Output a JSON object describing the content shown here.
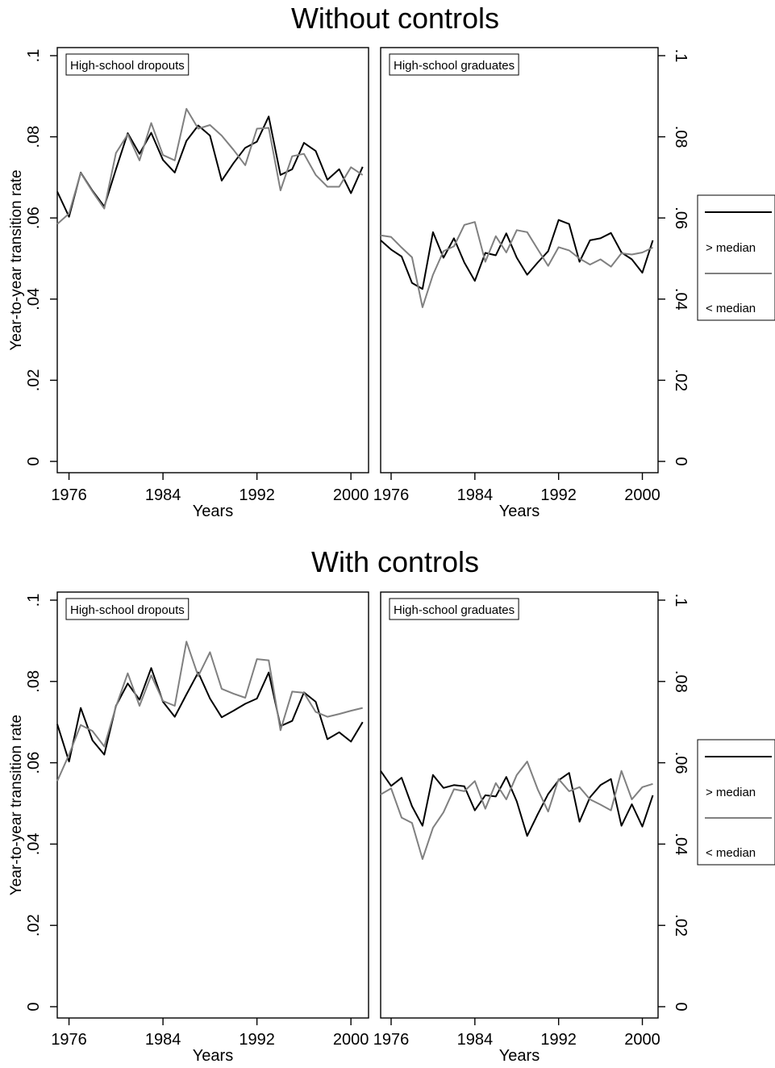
{
  "figure": {
    "colors": {
      "above_median": "#000000",
      "below_median": "#808080",
      "frame": "#000000",
      "background": "#ffffff"
    }
  },
  "chart_data": [
    {
      "type": "line",
      "title": "Without controls",
      "panel_title": "High-school dropouts",
      "xlabel": "Years",
      "ylabel": "Year-to-year transition rate",
      "xlim": [
        1975,
        2001.5
      ],
      "ylim": [
        0,
        0.1
      ],
      "xticks": [
        1976,
        1984,
        1992,
        2000
      ],
      "xtick_labels": [
        "1976",
        "1984",
        "1992",
        "2000"
      ],
      "yticks": [
        0,
        0.02,
        0.04,
        0.06,
        0.08,
        0.1
      ],
      "ytick_labels": [
        "0",
        ".02",
        ".04",
        ".06",
        ".08",
        ".1"
      ],
      "grid": false,
      "x": [
        1975,
        1976,
        1977,
        1978,
        1979,
        1980,
        1981,
        1982,
        1983,
        1984,
        1985,
        1986,
        1987,
        1988,
        1989,
        1990,
        1991,
        1992,
        1993,
        1994,
        1995,
        1996,
        1997,
        1998,
        1999,
        2000,
        2001
      ],
      "series": [
        {
          "name": "> median",
          "color": "#000000",
          "values": [
            0.0665,
            0.0603,
            0.0712,
            0.0667,
            0.0628,
            0.072,
            0.0809,
            0.0758,
            0.081,
            0.0743,
            0.0712,
            0.079,
            0.0828,
            0.0803,
            0.0692,
            0.0735,
            0.0773,
            0.0788,
            0.085,
            0.0706,
            0.072,
            0.0785,
            0.0765,
            0.0694,
            0.072,
            0.0661,
            0.0726
          ]
        },
        {
          "name": "< median",
          "color": "#808080",
          "values": [
            0.0585,
            0.0611,
            0.0711,
            0.0665,
            0.0623,
            0.076,
            0.0806,
            0.0742,
            0.0834,
            0.0755,
            0.0742,
            0.0869,
            0.082,
            0.0829,
            0.0803,
            0.0768,
            0.073,
            0.082,
            0.0822,
            0.0668,
            0.0752,
            0.0758,
            0.0706,
            0.0677,
            0.0677,
            0.0725,
            0.0706
          ]
        }
      ]
    },
    {
      "type": "line",
      "title": "Without controls",
      "panel_title": "High-school graduates",
      "xlabel": "Years",
      "ylabel": "",
      "xlim": [
        1975,
        2001.5
      ],
      "ylim": [
        0,
        0.1
      ],
      "xticks": [
        1976,
        1984,
        1992,
        2000
      ],
      "xtick_labels": [
        "1976",
        "1984",
        "1992",
        "2000"
      ],
      "yticks": [
        0,
        0.02,
        0.04,
        0.06,
        0.08,
        0.1
      ],
      "ytick_labels": [
        "0",
        ".02",
        ".04",
        ".06",
        ".08",
        ".1"
      ],
      "grid": false,
      "x": [
        1975,
        1976,
        1977,
        1978,
        1979,
        1980,
        1981,
        1982,
        1983,
        1984,
        1985,
        1986,
        1987,
        1988,
        1989,
        1990,
        1991,
        1992,
        1993,
        1994,
        1995,
        1996,
        1997,
        1998,
        1999,
        2000,
        2001
      ],
      "series": [
        {
          "name": "> median",
          "color": "#000000",
          "values": [
            0.0545,
            0.0522,
            0.0505,
            0.044,
            0.0425,
            0.0565,
            0.0502,
            0.055,
            0.049,
            0.0445,
            0.0514,
            0.0508,
            0.0562,
            0.0502,
            0.046,
            0.049,
            0.0518,
            0.0595,
            0.0585,
            0.0492,
            0.0545,
            0.055,
            0.0563,
            0.0515,
            0.0498,
            0.0465,
            0.0545
          ]
        },
        {
          "name": "< median",
          "color": "#808080",
          "values": [
            0.0557,
            0.0553,
            0.0527,
            0.0503,
            0.038,
            0.046,
            0.0518,
            0.053,
            0.0583,
            0.059,
            0.0492,
            0.0555,
            0.0515,
            0.057,
            0.0565,
            0.0523,
            0.0482,
            0.0528,
            0.052,
            0.05,
            0.0485,
            0.0498,
            0.048,
            0.0513,
            0.051,
            0.0515,
            0.0527
          ]
        }
      ]
    },
    {
      "type": "line",
      "title": "With controls",
      "panel_title": "High-school dropouts",
      "xlabel": "Years",
      "ylabel": "Year-to-year transition rate",
      "xlim": [
        1975,
        2001.5
      ],
      "ylim": [
        0,
        0.1
      ],
      "xticks": [
        1976,
        1984,
        1992,
        2000
      ],
      "xtick_labels": [
        "1976",
        "1984",
        "1992",
        "2000"
      ],
      "yticks": [
        0,
        0.02,
        0.04,
        0.06,
        0.08,
        0.1
      ],
      "ytick_labels": [
        "0",
        ".02",
        ".04",
        ".06",
        ".08",
        ".1"
      ],
      "grid": false,
      "x": [
        1975,
        1976,
        1977,
        1978,
        1979,
        1980,
        1981,
        1982,
        1983,
        1984,
        1985,
        1986,
        1987,
        1988,
        1989,
        1990,
        1991,
        1992,
        1993,
        1994,
        1995,
        1996,
        1997,
        1998,
        1999,
        2000,
        2001
      ],
      "series": [
        {
          "name": "> median",
          "color": "#000000",
          "values": [
            0.0695,
            0.0603,
            0.0735,
            0.0655,
            0.062,
            0.074,
            0.0795,
            0.0755,
            0.0833,
            0.075,
            0.0713,
            0.0768,
            0.0822,
            0.0758,
            0.0712,
            0.0728,
            0.0745,
            0.0758,
            0.0822,
            0.069,
            0.0703,
            0.0773,
            0.075,
            0.0658,
            0.0675,
            0.0652,
            0.07
          ]
        },
        {
          "name": "< median",
          "color": "#808080",
          "values": [
            0.0555,
            0.062,
            0.0693,
            0.0678,
            0.064,
            0.0738,
            0.082,
            0.074,
            0.0815,
            0.0752,
            0.074,
            0.0898,
            0.0813,
            0.0872,
            0.0782,
            0.077,
            0.076,
            0.0855,
            0.0852,
            0.068,
            0.0775,
            0.0772,
            0.0725,
            0.0713,
            0.072,
            0.0728,
            0.0735
          ]
        }
      ]
    },
    {
      "type": "line",
      "title": "With controls",
      "panel_title": "High-school graduates",
      "xlabel": "Years",
      "ylabel": "",
      "xlim": [
        1975,
        2001.5
      ],
      "ylim": [
        0,
        0.1
      ],
      "xticks": [
        1976,
        1984,
        1992,
        2000
      ],
      "xtick_labels": [
        "1976",
        "1984",
        "1992",
        "2000"
      ],
      "yticks": [
        0,
        0.02,
        0.04,
        0.06,
        0.08,
        0.1
      ],
      "ytick_labels": [
        "0",
        ".02",
        ".04",
        ".06",
        ".08",
        ".1"
      ],
      "grid": false,
      "x": [
        1975,
        1976,
        1977,
        1978,
        1979,
        1980,
        1981,
        1982,
        1983,
        1984,
        1985,
        1986,
        1987,
        1988,
        1989,
        1990,
        1991,
        1992,
        1993,
        1994,
        1995,
        1996,
        1997,
        1998,
        1999,
        2000,
        2001
      ],
      "series": [
        {
          "name": "> median",
          "color": "#000000",
          "values": [
            0.058,
            0.0543,
            0.0563,
            0.0493,
            0.0445,
            0.057,
            0.0538,
            0.0545,
            0.0542,
            0.0483,
            0.052,
            0.0517,
            0.0565,
            0.0505,
            0.042,
            0.0473,
            0.0523,
            0.0557,
            0.0575,
            0.0455,
            0.0515,
            0.0545,
            0.056,
            0.0445,
            0.0498,
            0.0443,
            0.052
          ]
        },
        {
          "name": "< median",
          "color": "#808080",
          "values": [
            0.0522,
            0.0537,
            0.0465,
            0.0452,
            0.0363,
            0.044,
            0.0478,
            0.0535,
            0.053,
            0.0555,
            0.0487,
            0.055,
            0.051,
            0.057,
            0.0603,
            0.0535,
            0.048,
            0.056,
            0.053,
            0.054,
            0.051,
            0.0497,
            0.0483,
            0.058,
            0.051,
            0.054,
            0.0548
          ]
        }
      ]
    }
  ],
  "legends": [
    {
      "items": [
        "> median",
        "< median"
      ]
    },
    {
      "items": [
        "> median",
        "< median"
      ]
    }
  ]
}
